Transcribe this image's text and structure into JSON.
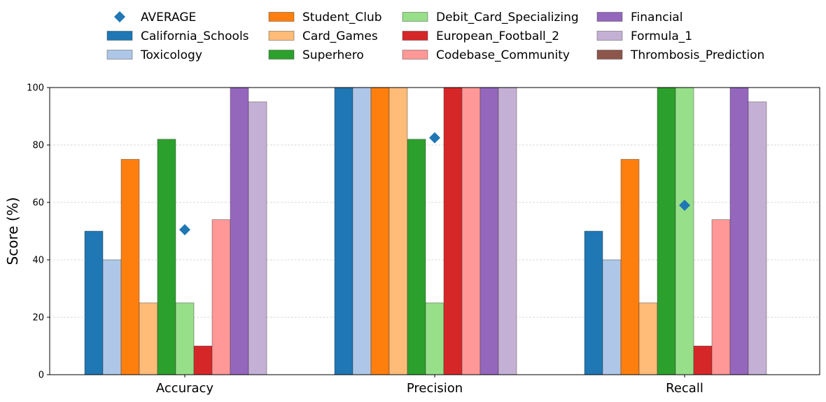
{
  "chart_data": {
    "type": "bar",
    "title": "",
    "xlabel": "",
    "ylabel": "Score (%)",
    "ylim": [
      0,
      100
    ],
    "yticks": [
      0,
      20,
      40,
      60,
      80,
      100
    ],
    "grid": "horizontal-dashed",
    "legend_position": "top",
    "categories": [
      "Accuracy",
      "Precision",
      "Recall"
    ],
    "series": [
      {
        "name": "California_Schools",
        "color": "#1f77b4",
        "values": [
          50,
          100,
          50
        ]
      },
      {
        "name": "Toxicology",
        "color": "#aec7e8",
        "values": [
          40,
          100,
          40
        ]
      },
      {
        "name": "Student_Club",
        "color": "#ff7f0e",
        "values": [
          75,
          100,
          75
        ]
      },
      {
        "name": "Card_Games",
        "color": "#ffbb78",
        "values": [
          25,
          100,
          25
        ]
      },
      {
        "name": "Superhero",
        "color": "#2ca02c",
        "values": [
          82,
          82,
          100
        ]
      },
      {
        "name": "Debit_Card_Specializing",
        "color": "#98df8a",
        "values": [
          25,
          25,
          100
        ]
      },
      {
        "name": "European_Football_2",
        "color": "#d62728",
        "values": [
          10,
          100,
          10
        ]
      },
      {
        "name": "Codebase_Community",
        "color": "#ff9896",
        "values": [
          54,
          100,
          54
        ]
      },
      {
        "name": "Financial",
        "color": "#9467bd",
        "values": [
          100,
          100,
          100
        ]
      },
      {
        "name": "Formula_1",
        "color": "#c5b0d5",
        "values": [
          95,
          100,
          95
        ]
      },
      {
        "name": "Thrombosis_Prediction",
        "color": "#8c564b",
        "values": [
          0,
          0,
          0
        ]
      }
    ],
    "average": {
      "name": "AVERAGE",
      "color": "#1f77b4",
      "marker": "diamond",
      "values": [
        50.5,
        82.5,
        59
      ]
    }
  }
}
